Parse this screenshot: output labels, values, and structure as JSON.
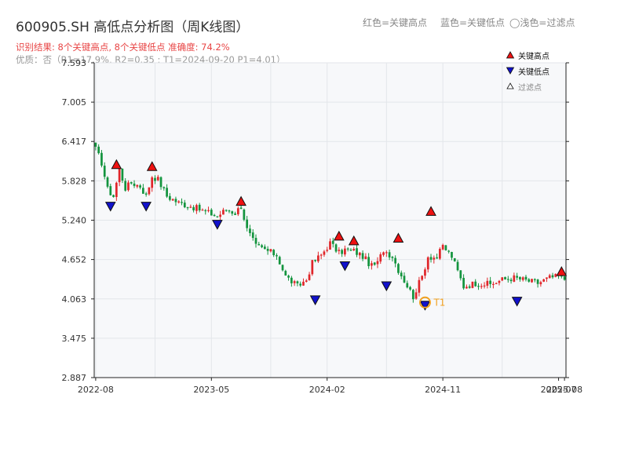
{
  "header": {
    "title": "600905.SH 高低点分析图（周K线图）",
    "top_legend": {
      "red": "红色=关键高点",
      "blue": "蓝色=关键低点",
      "light": "◯浅色=过滤点"
    },
    "result_line": "识别结果: 8个关键高点, 8个关键低点  准确度: 74.2%",
    "quality_line": "优质：否（R1=17.9%, R2=0.35 ; T1=2024-09-20 P1=4.01）"
  },
  "legend": {
    "position": "top-right",
    "high": "关键高点",
    "low": "关键低点",
    "filtered": "过滤点"
  },
  "colors": {
    "up": "#e0262a",
    "down": "#13943e",
    "high_marker": "#ee1111",
    "low_marker": "#1111cc",
    "t1_ring": "#f0a020",
    "panel_bg": "#f7f8fa",
    "grid": "#e3e6ea"
  },
  "chart_data": {
    "type": "candlestick",
    "x_label_text": [
      "2022-08",
      "2023-05",
      "2024-02",
      "2024-11",
      "2025-07",
      "2025-08"
    ],
    "x_label_weeks": [
      0,
      39,
      78,
      117,
      156,
      158
    ],
    "y_ticks": [
      2.887,
      3.475,
      4.063,
      4.652,
      5.24,
      5.828,
      6.417,
      7.005,
      7.593
    ],
    "ylim": [
      2.887,
      7.593
    ],
    "n_weeks": 159,
    "close_anchors": [
      [
        0,
        6.3
      ],
      [
        2,
        6.1
      ],
      [
        4,
        5.7
      ],
      [
        6,
        5.6
      ],
      [
        8,
        6.0
      ],
      [
        10,
        5.72
      ],
      [
        12,
        5.8
      ],
      [
        15,
        5.75
      ],
      [
        17,
        5.6
      ],
      [
        19,
        5.9
      ],
      [
        21,
        5.85
      ],
      [
        24,
        5.6
      ],
      [
        28,
        5.5
      ],
      [
        32,
        5.45
      ],
      [
        38,
        5.35
      ],
      [
        41,
        5.3
      ],
      [
        44,
        5.4
      ],
      [
        47,
        5.35
      ],
      [
        49,
        5.45
      ],
      [
        51,
        5.1
      ],
      [
        54,
        4.85
      ],
      [
        57,
        4.8
      ],
      [
        61,
        4.72
      ],
      [
        64,
        4.4
      ],
      [
        68,
        4.25
      ],
      [
        71,
        4.35
      ],
      [
        73,
        4.6
      ],
      [
        76,
        4.72
      ],
      [
        79,
        4.9
      ],
      [
        82,
        4.75
      ],
      [
        84,
        4.8
      ],
      [
        87,
        4.78
      ],
      [
        90,
        4.7
      ],
      [
        93,
        4.55
      ],
      [
        95,
        4.6
      ],
      [
        97,
        4.8
      ],
      [
        100,
        4.7
      ],
      [
        102,
        4.5
      ],
      [
        107,
        4.1
      ],
      [
        110,
        4.4
      ],
      [
        112,
        4.7
      ],
      [
        115,
        4.68
      ],
      [
        117,
        4.85
      ],
      [
        120,
        4.7
      ],
      [
        124,
        4.25
      ],
      [
        128,
        4.3
      ],
      [
        133,
        4.28
      ],
      [
        137,
        4.35
      ],
      [
        141,
        4.38
      ],
      [
        146,
        4.33
      ],
      [
        149,
        4.3
      ],
      [
        153,
        4.38
      ],
      [
        156,
        4.4
      ],
      [
        158,
        4.36
      ]
    ],
    "key_highs": [
      {
        "week": 7,
        "price": 6.0
      },
      {
        "week": 19,
        "price": 5.97
      },
      {
        "week": 49,
        "price": 5.45
      },
      {
        "week": 82,
        "price": 4.93
      },
      {
        "week": 87,
        "price": 4.86
      },
      {
        "week": 102,
        "price": 4.9
      },
      {
        "week": 113,
        "price": 5.3
      },
      {
        "week": 157,
        "price": 4.4
      }
    ],
    "key_lows": [
      {
        "week": 5,
        "price": 5.52
      },
      {
        "week": 17,
        "price": 5.52
      },
      {
        "week": 41,
        "price": 5.25
      },
      {
        "week": 74,
        "price": 4.12
      },
      {
        "week": 84,
        "price": 4.63
      },
      {
        "week": 98,
        "price": 4.33
      },
      {
        "week": 111,
        "price": 4.04
      },
      {
        "week": 142,
        "price": 4.1
      }
    ],
    "t1": {
      "week": 111,
      "price": 4.01,
      "label": "T1"
    }
  }
}
